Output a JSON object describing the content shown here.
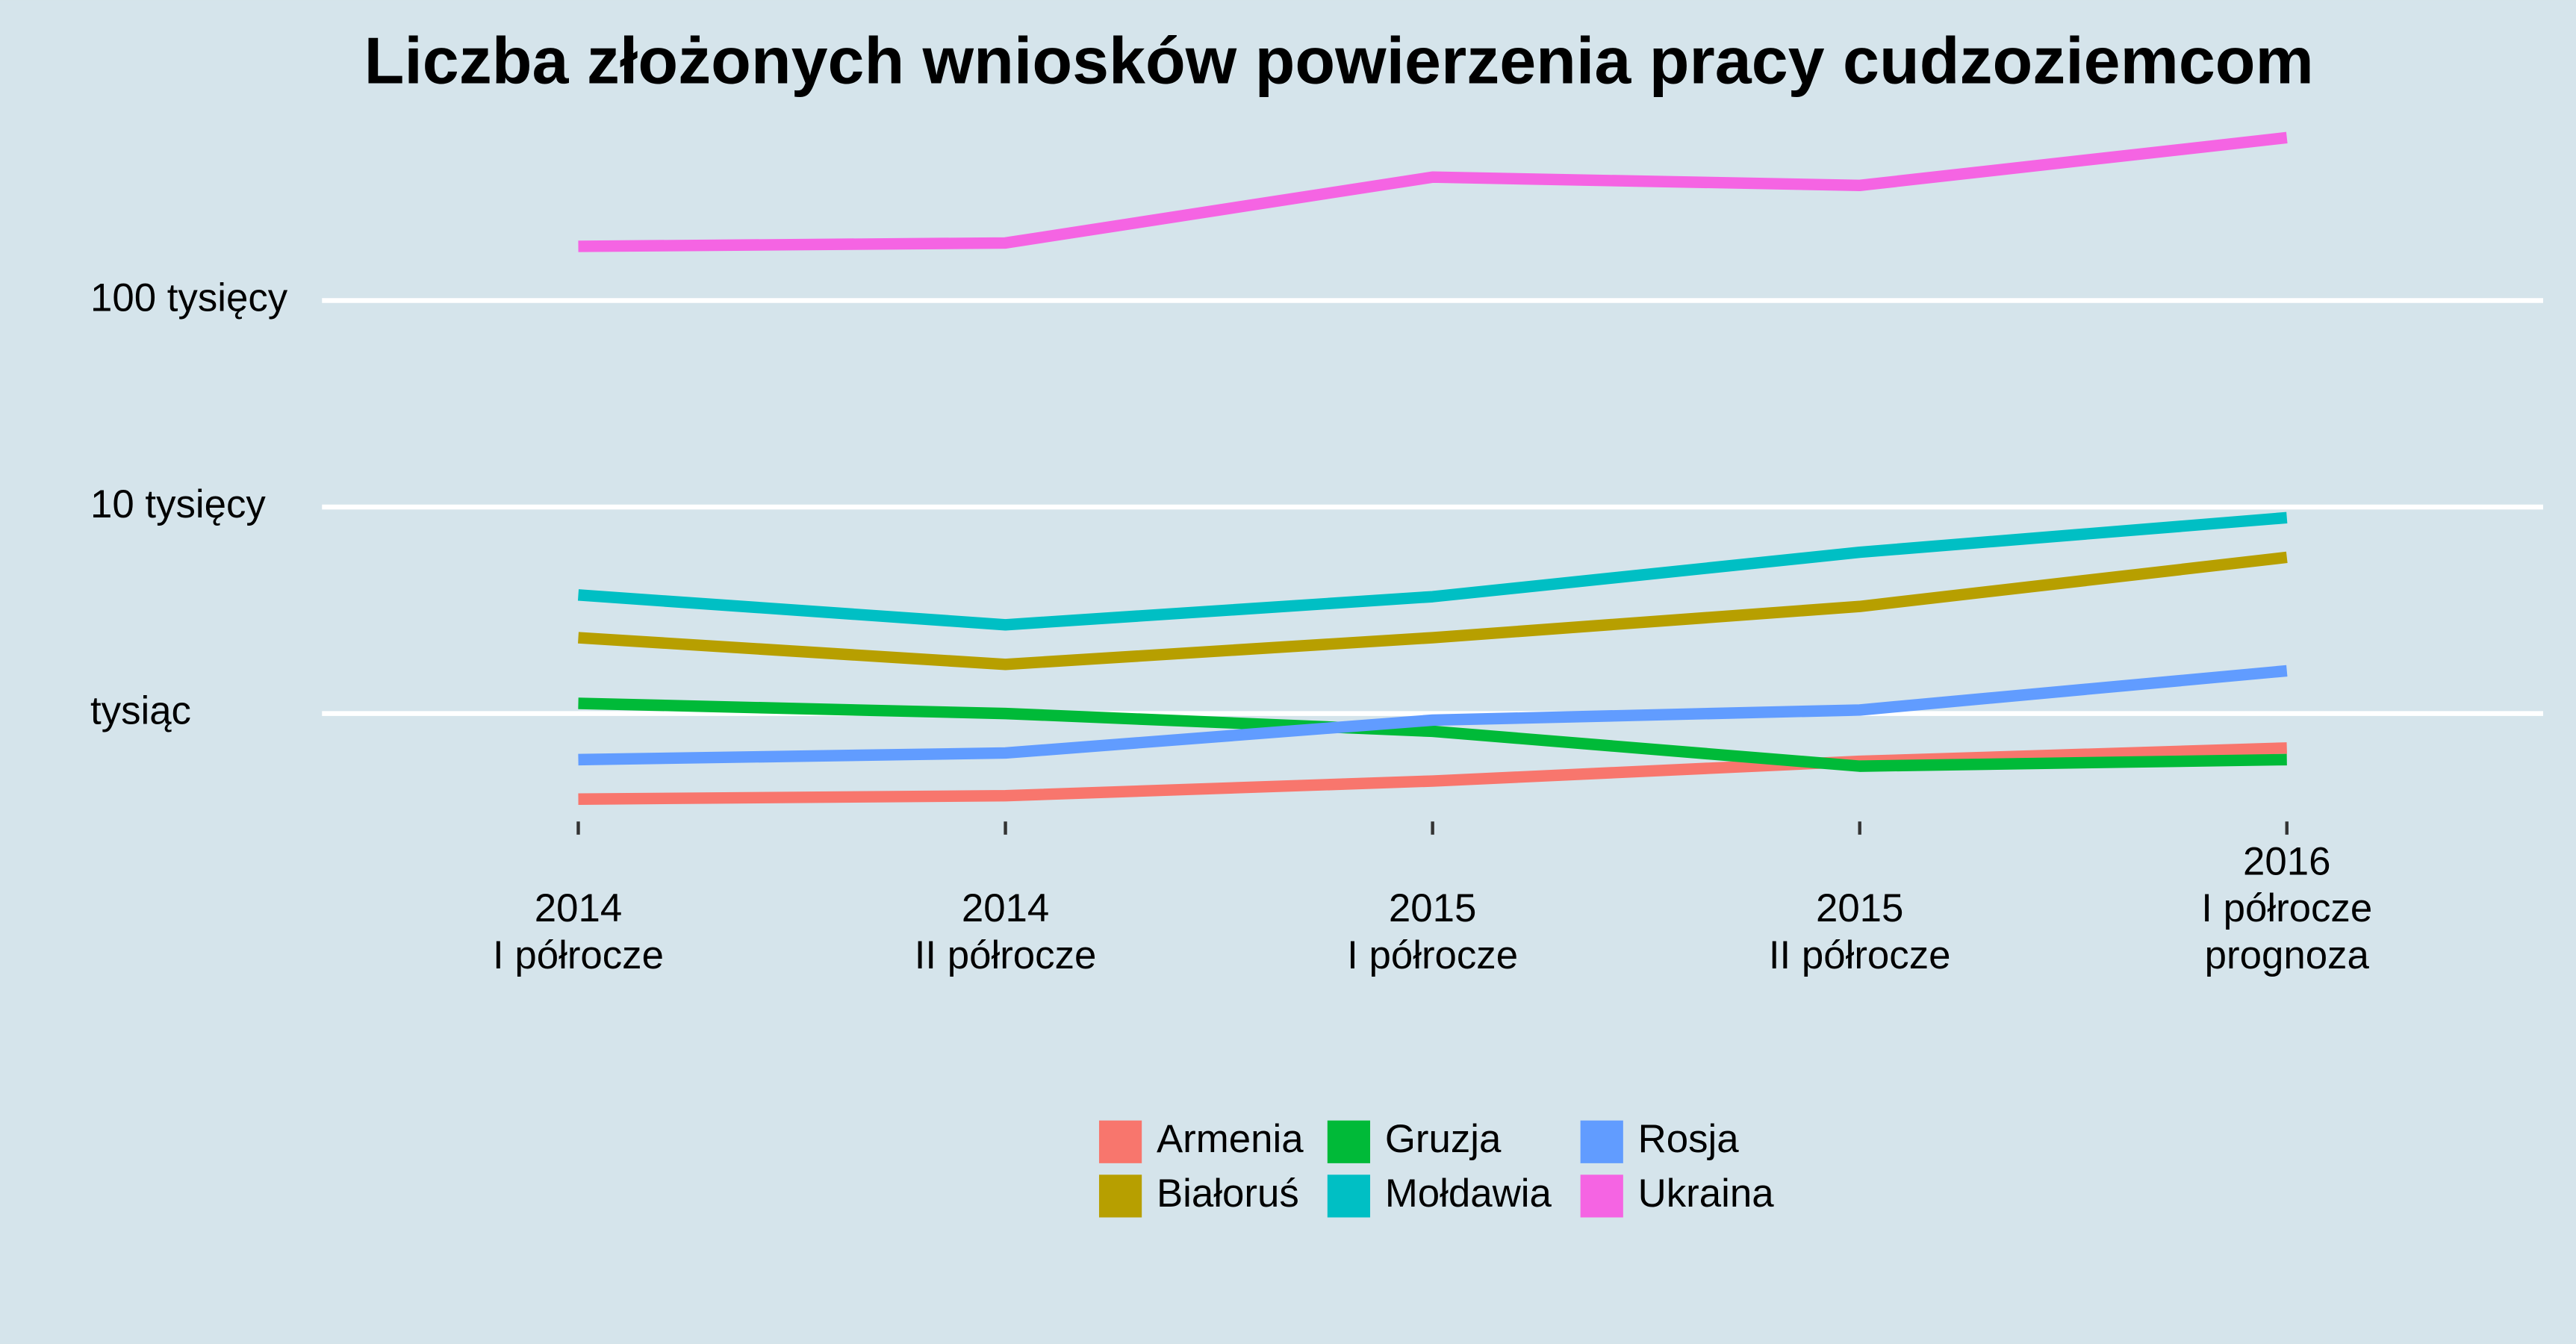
{
  "chart_data": {
    "type": "line",
    "title": "Liczba złożonych wniosków powierzenia pracy cudzoziemcom",
    "categories": [
      [
        "2014",
        "I półrocze"
      ],
      [
        "2014",
        "II półrocze"
      ],
      [
        "2015",
        "I półrocze"
      ],
      [
        "2015",
        "II półrocze"
      ],
      [
        "2016",
        "I półrocze",
        "prognoza"
      ]
    ],
    "series": [
      {
        "name": "Armenia",
        "color": "#f8766d",
        "values": [
          385,
          400,
          471,
          587,
          681
        ]
      },
      {
        "name": "Białoruś",
        "color": "#b79f00",
        "values": [
          2330,
          1730,
          2330,
          3300,
          5710
        ]
      },
      {
        "name": "Gruzja",
        "color": "#00ba38",
        "values": [
          1120,
          1000,
          820,
          556,
          598
        ]
      },
      {
        "name": "Mołdawia",
        "color": "#00bfc4",
        "values": [
          3750,
          2690,
          3680,
          6040,
          8880
        ]
      },
      {
        "name": "Rosja",
        "color": "#619cff",
        "values": [
          598,
          644,
          929,
          1040,
          1610
        ]
      },
      {
        "name": "Ukraina",
        "color": "#f564e3",
        "values": [
          183000,
          190000,
          396000,
          361000,
          615000
        ]
      }
    ],
    "ylim": [
      300,
      950000
    ],
    "yticks": [
      {
        "value": 1000,
        "label": "tysiąc"
      },
      {
        "value": 10000,
        "label": "10 tysięcy"
      },
      {
        "value": 100000,
        "label": "100 tysięcy"
      }
    ],
    "log_scale_y": true,
    "grid": true
  }
}
